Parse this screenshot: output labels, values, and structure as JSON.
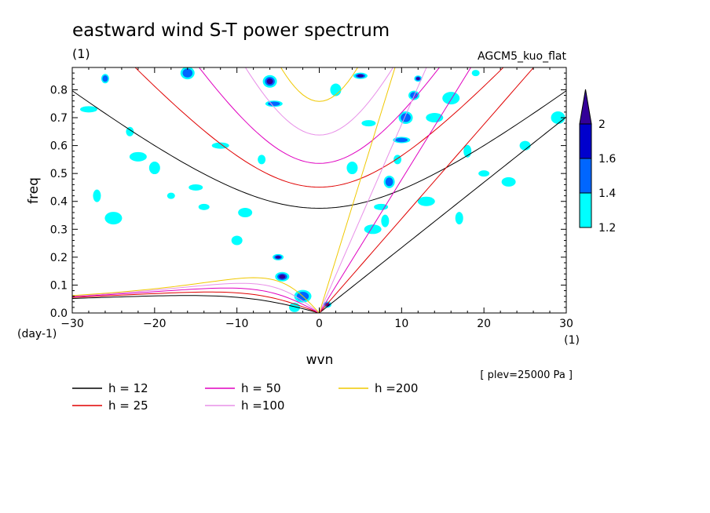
{
  "chart_data": {
    "type": "contour",
    "title": "eastward wind S-T power spectrum",
    "subtitle_left": "(1)",
    "subtitle_right": "AGCM5_kuo_flat",
    "xlabel": "wvn",
    "ylabel": "freq",
    "x_unit": "(1)",
    "y_unit": "(day-1)",
    "xlim": [
      -30,
      30
    ],
    "ylim": [
      0,
      0.88
    ],
    "x_ticks": [
      -30,
      -20,
      -10,
      0,
      10,
      20,
      30
    ],
    "y_ticks": [
      0.0,
      0.1,
      0.2,
      0.3,
      0.4,
      0.5,
      0.6,
      0.7,
      0.8
    ],
    "y_tick_labels": [
      "0.0",
      "0.1",
      "0.2",
      "0.3",
      "0.4",
      "0.5",
      "0.6",
      "0.7",
      "0.8"
    ],
    "x_tick_labels": [
      "−30",
      "−20",
      "−10",
      "0",
      "10",
      "20",
      "30"
    ],
    "annotation": "[ plev=25000 Pa ]",
    "colorbar": {
      "levels": [
        1.2,
        1.4,
        1.6,
        2.0
      ],
      "labels": [
        "1.2",
        "1.4",
        "1.6",
        "2"
      ],
      "colors": [
        "#00ffff",
        "#0066ff",
        "#0000cc",
        "#330099"
      ]
    },
    "dispersion_curves": [
      {
        "label": "h = 12",
        "h": 12,
        "color": "#000000",
        "width": 1.0
      },
      {
        "label": "h = 25",
        "h": 25,
        "color": "#e00000",
        "width": 1.0
      },
      {
        "label": "h = 50",
        "h": 50,
        "color": "#e000c0",
        "width": 1.0
      },
      {
        "label": "h =100",
        "h": 100,
        "color": "#e890e8",
        "width": 1.0
      },
      {
        "label": "h =200",
        "h": 200,
        "color": "#f0c800",
        "width": 1.0
      }
    ],
    "shaded_blobs": [
      {
        "x": 12,
        "y": 0.84,
        "level": 3
      },
      {
        "x": 11.5,
        "y": 0.78,
        "level": 2
      },
      {
        "x": 10.5,
        "y": 0.7,
        "level": 2
      },
      {
        "x": 10,
        "y": 0.62,
        "level": 2
      },
      {
        "x": 9.5,
        "y": 0.55,
        "level": 1
      },
      {
        "x": 8.5,
        "y": 0.47,
        "level": 2
      },
      {
        "x": 7.5,
        "y": 0.38,
        "level": 1
      },
      {
        "x": 6.5,
        "y": 0.3,
        "level": 1
      },
      {
        "x": 8,
        "y": 0.33,
        "level": 1
      },
      {
        "x": -5,
        "y": 0.2,
        "level": 3
      },
      {
        "x": -4.5,
        "y": 0.13,
        "level": 3
      },
      {
        "x": -2,
        "y": 0.06,
        "level": 2
      },
      {
        "x": 1,
        "y": 0.03,
        "level": 3
      },
      {
        "x": -3,
        "y": 0.02,
        "level": 1
      },
      {
        "x": -6,
        "y": 0.83,
        "level": 3
      },
      {
        "x": -5.5,
        "y": 0.75,
        "level": 2
      },
      {
        "x": -26,
        "y": 0.84,
        "level": 2
      },
      {
        "x": -20,
        "y": 0.52,
        "level": 1
      },
      {
        "x": -15,
        "y": 0.45,
        "level": 1
      },
      {
        "x": -22,
        "y": 0.56,
        "level": 1
      },
      {
        "x": -27,
        "y": 0.42,
        "level": 1
      },
      {
        "x": -14,
        "y": 0.38,
        "level": 1
      },
      {
        "x": -9,
        "y": 0.36,
        "level": 1
      },
      {
        "x": -25,
        "y": 0.34,
        "level": 1
      },
      {
        "x": -18,
        "y": 0.42,
        "level": 1
      },
      {
        "x": -10,
        "y": 0.26,
        "level": 1
      },
      {
        "x": -16,
        "y": 0.86,
        "level": 2
      },
      {
        "x": -28,
        "y": 0.73,
        "level": 1
      },
      {
        "x": -23,
        "y": 0.65,
        "level": 1
      },
      {
        "x": 4,
        "y": 0.52,
        "level": 1
      },
      {
        "x": 6,
        "y": 0.68,
        "level": 1
      },
      {
        "x": 14,
        "y": 0.7,
        "level": 1
      },
      {
        "x": 18,
        "y": 0.58,
        "level": 1
      },
      {
        "x": 20,
        "y": 0.5,
        "level": 1
      },
      {
        "x": 23,
        "y": 0.47,
        "level": 1
      },
      {
        "x": 16,
        "y": 0.77,
        "level": 1
      },
      {
        "x": 19,
        "y": 0.86,
        "level": 1
      },
      {
        "x": 25,
        "y": 0.6,
        "level": 1
      },
      {
        "x": 29,
        "y": 0.7,
        "level": 1
      },
      {
        "x": -12,
        "y": 0.6,
        "level": 1
      },
      {
        "x": -7,
        "y": 0.55,
        "level": 1
      },
      {
        "x": 2,
        "y": 0.8,
        "level": 1
      },
      {
        "x": 5,
        "y": 0.85,
        "level": 3
      },
      {
        "x": 13,
        "y": 0.4,
        "level": 1
      },
      {
        "x": 17,
        "y": 0.34,
        "level": 1
      }
    ]
  },
  "legend": {
    "items": [
      {
        "label": "h = 12",
        "color": "#000000"
      },
      {
        "label": "h = 25",
        "color": "#e00000"
      },
      {
        "label": "h = 50",
        "color": "#e000c0"
      },
      {
        "label": "h =100",
        "color": "#e890e8"
      },
      {
        "label": "h =200",
        "color": "#f0c800"
      }
    ]
  }
}
